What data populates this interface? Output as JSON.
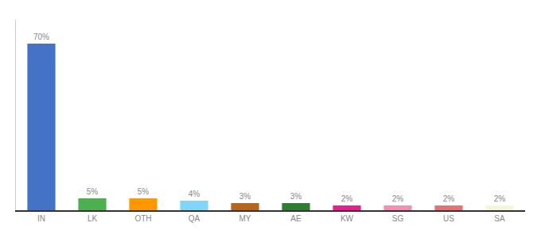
{
  "chart_data": {
    "type": "bar",
    "categories": [
      "IN",
      "LK",
      "OTH",
      "QA",
      "MY",
      "AE",
      "KW",
      "SG",
      "US",
      "SA"
    ],
    "values": [
      70,
      5,
      5,
      4,
      3,
      3,
      2,
      2,
      2,
      2
    ],
    "value_labels": [
      "70%",
      "5%",
      "5%",
      "4%",
      "3%",
      "3%",
      "2%",
      "2%",
      "2%",
      "2%"
    ],
    "colors": [
      "#4472c4",
      "#4caf50",
      "#ff9800",
      "#81d4fa",
      "#b5651d",
      "#2e7d32",
      "#e91e8c",
      "#f48fb1",
      "#e57373",
      "#f5f5dc"
    ],
    "ylim": [
      0,
      80
    ],
    "grid": false,
    "data_labels": true,
    "tick_labels": "x"
  }
}
